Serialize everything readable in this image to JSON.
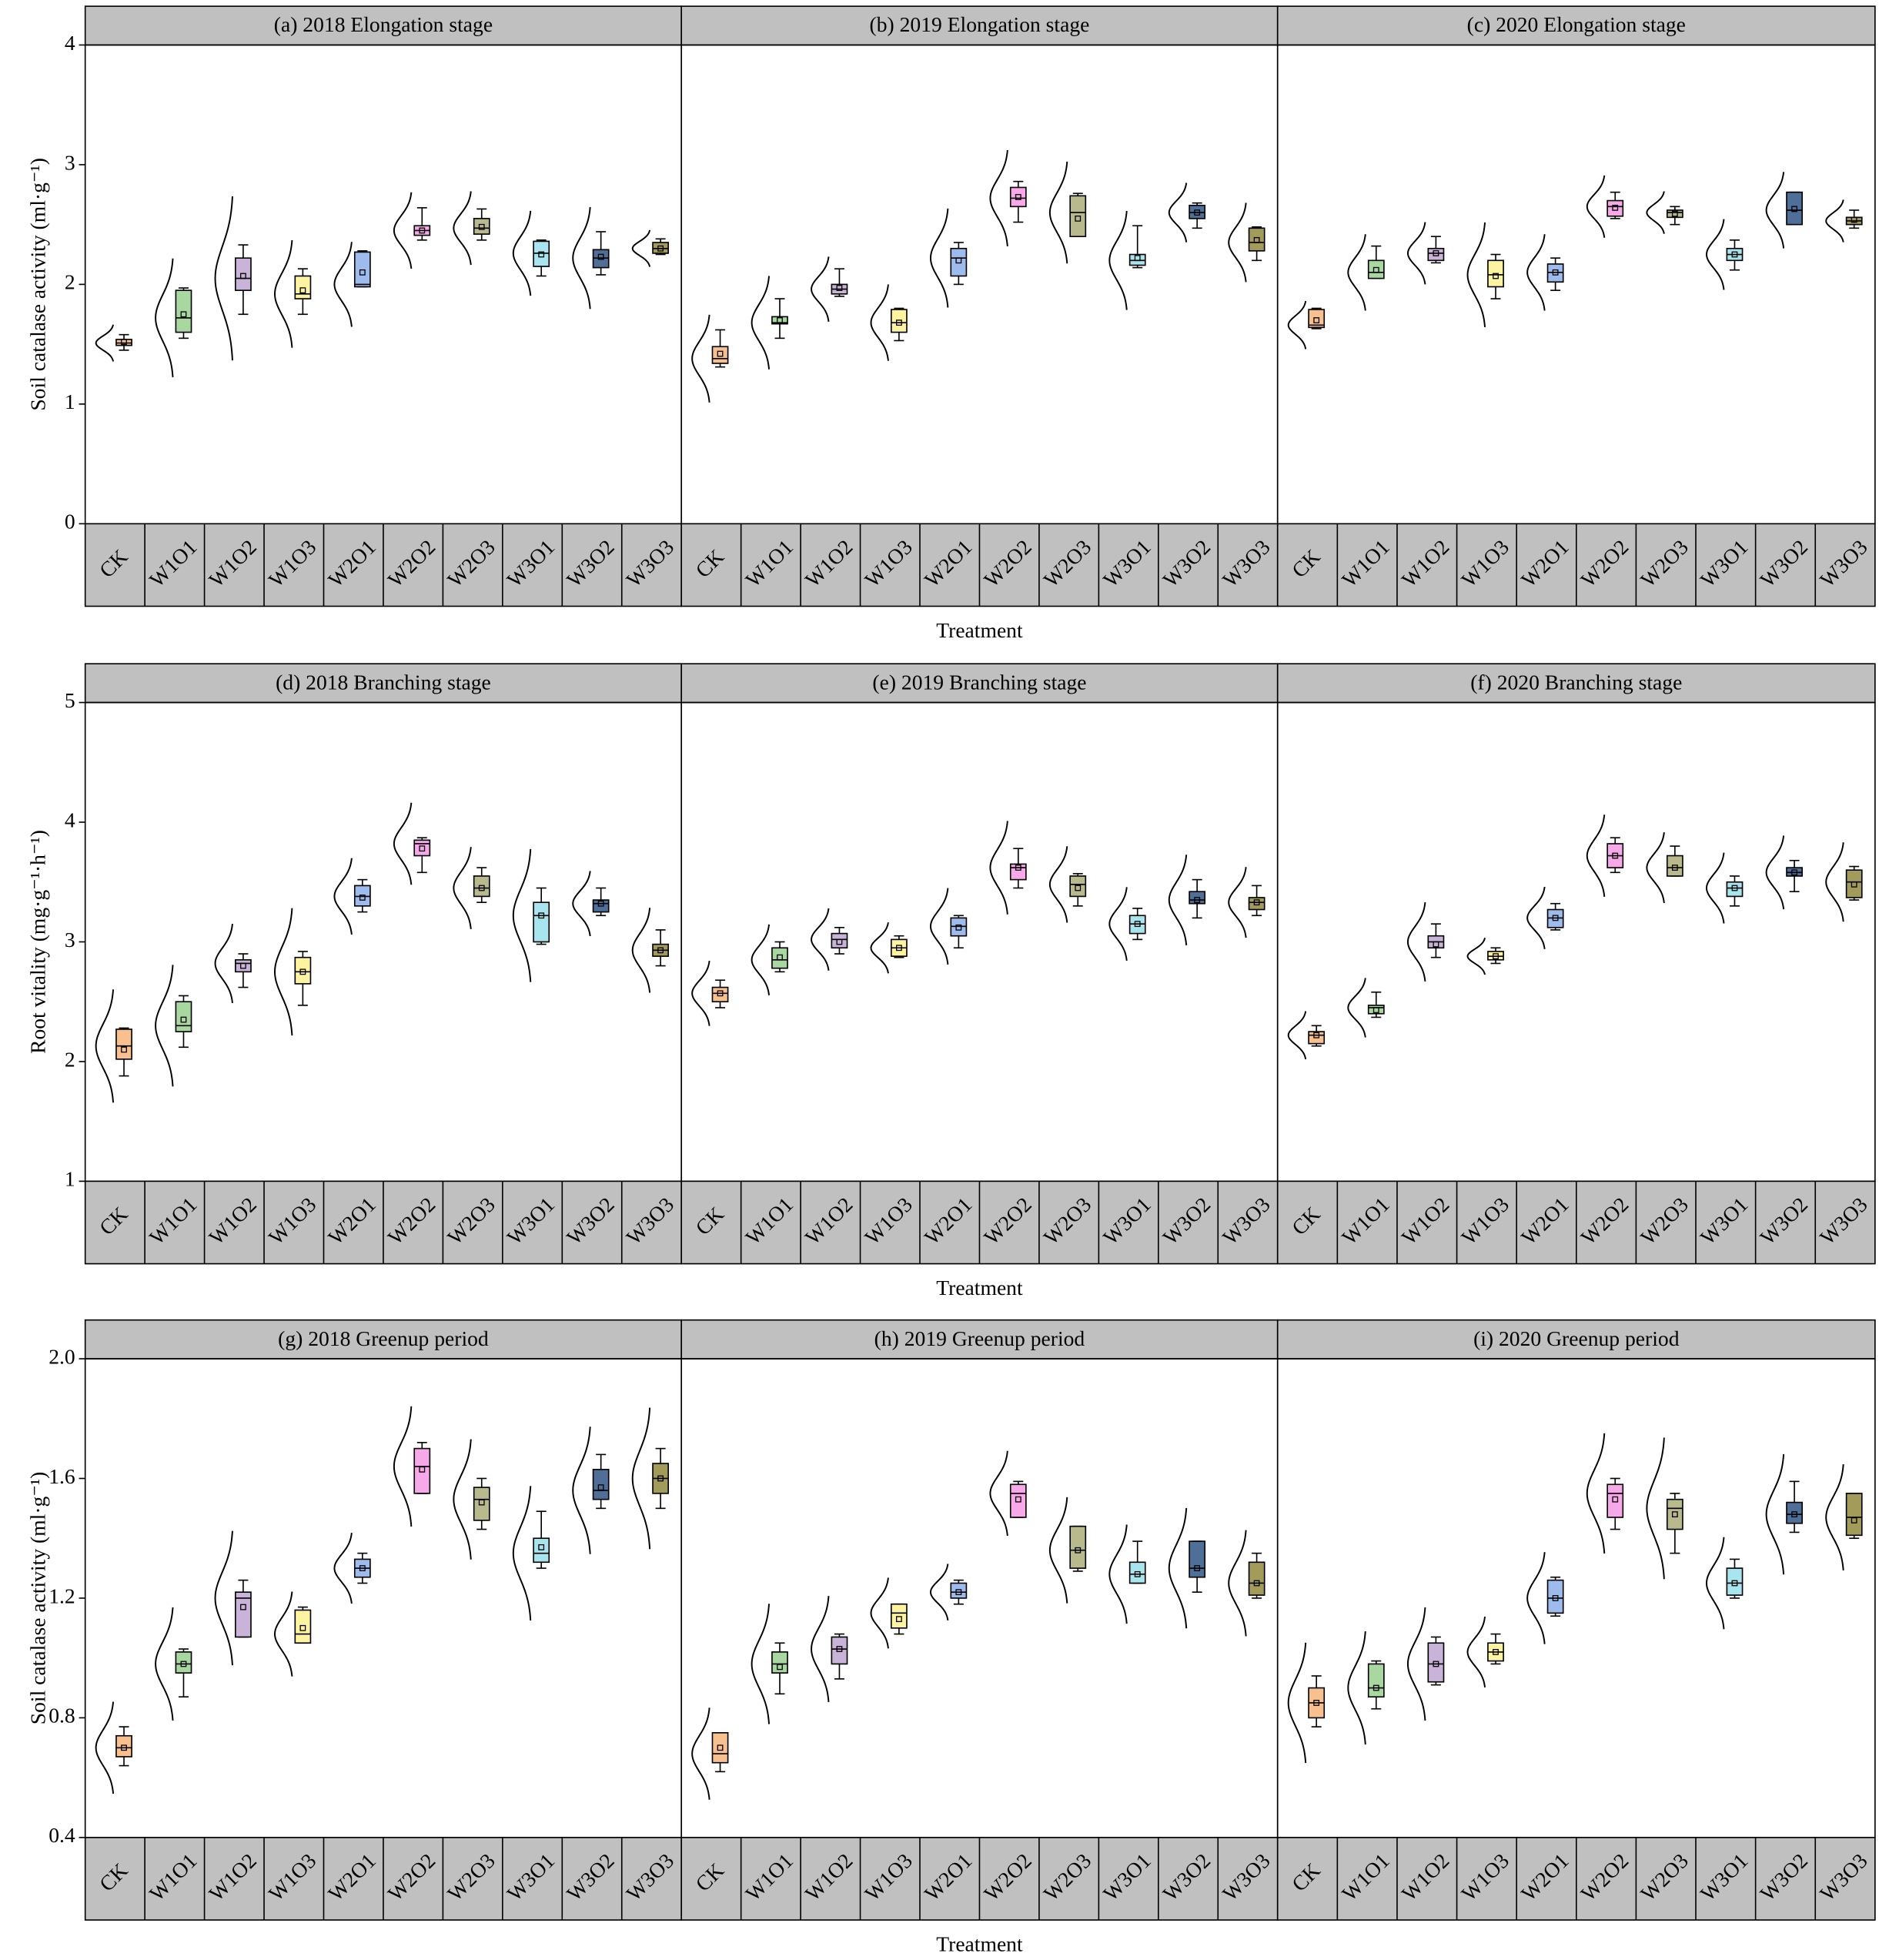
{
  "chart_data": [
    {
      "type": "box",
      "title": "(a) 2018 Elongation stage",
      "ylabel": "Soil catalase activity (ml·g⁻¹)",
      "ylim": [
        0,
        4
      ],
      "yticks": [
        0,
        1,
        2,
        3,
        4
      ],
      "categories": [
        "CK",
        "W1O1",
        "W1O2",
        "W1O3",
        "W2O1",
        "W2O2",
        "W2O3",
        "W3O1",
        "W3O2",
        "W3O3"
      ],
      "colors": [
        "#f9c08f",
        "#a8d8a0",
        "#c9b3d9",
        "#fdf3a0",
        "#9dbbec",
        "#f7a8e8",
        "#b9b98e",
        "#a8e5ef",
        "#4f6f99",
        "#a39b5a"
      ],
      "boxes": [
        [
          1.45,
          1.49,
          1.51,
          1.54,
          1.58
        ],
        [
          1.55,
          1.6,
          1.72,
          1.95,
          1.97
        ],
        [
          1.75,
          1.95,
          2.05,
          2.22,
          2.33
        ],
        [
          1.75,
          1.88,
          1.92,
          2.07,
          2.13
        ],
        [
          1.98,
          1.98,
          2.0,
          2.27,
          2.28
        ],
        [
          2.37,
          2.41,
          2.45,
          2.49,
          2.64
        ],
        [
          2.37,
          2.42,
          2.47,
          2.55,
          2.63
        ],
        [
          2.07,
          2.15,
          2.26,
          2.36,
          2.37
        ],
        [
          2.08,
          2.14,
          2.22,
          2.29,
          2.44
        ],
        [
          2.25,
          2.26,
          2.3,
          2.35,
          2.38
        ]
      ],
      "means": [
        1.52,
        1.75,
        2.07,
        1.95,
        2.1,
        2.45,
        2.48,
        2.25,
        2.23,
        2.3
      ]
    },
    {
      "type": "box",
      "title": "(b) 2019 Elongation stage",
      "xlabel": "Treatment",
      "ylim": [
        0,
        4
      ],
      "categories": [
        "CK",
        "W1O1",
        "W1O2",
        "W1O3",
        "W2O1",
        "W2O2",
        "W2O3",
        "W3O1",
        "W3O2",
        "W3O3"
      ],
      "colors": [
        "#f9c08f",
        "#a8d8a0",
        "#c9b3d9",
        "#fdf3a0",
        "#9dbbec",
        "#f7a8e8",
        "#b9b98e",
        "#a8e5ef",
        "#4f6f99",
        "#a39b5a"
      ],
      "boxes": [
        [
          1.31,
          1.34,
          1.38,
          1.48,
          1.62
        ],
        [
          1.55,
          1.67,
          1.68,
          1.73,
          1.88
        ],
        [
          1.9,
          1.92,
          1.96,
          2.0,
          2.13
        ],
        [
          1.53,
          1.6,
          1.68,
          1.79,
          1.8
        ],
        [
          2.0,
          2.07,
          2.22,
          2.3,
          2.35
        ],
        [
          2.52,
          2.65,
          2.72,
          2.81,
          2.86
        ],
        [
          2.4,
          2.4,
          2.6,
          2.74,
          2.76
        ],
        [
          2.14,
          2.16,
          2.2,
          2.25,
          2.49
        ],
        [
          2.47,
          2.55,
          2.6,
          2.66,
          2.68
        ],
        [
          2.2,
          2.28,
          2.35,
          2.47,
          2.48
        ]
      ],
      "means": [
        1.42,
        1.7,
        1.97,
        1.68,
        2.2,
        2.73,
        2.55,
        2.22,
        2.6,
        2.37
      ]
    },
    {
      "type": "box",
      "title": "(c) 2020 Elongation stage",
      "ylim": [
        0,
        4
      ],
      "categories": [
        "CK",
        "W1O1",
        "W1O2",
        "W1O3",
        "W2O1",
        "W2O2",
        "W2O3",
        "W3O1",
        "W3O2",
        "W3O3"
      ],
      "colors": [
        "#f9c08f",
        "#a8d8a0",
        "#c9b3d9",
        "#fdf3a0",
        "#9dbbec",
        "#f7a8e8",
        "#b9b98e",
        "#a8e5ef",
        "#4f6f99",
        "#a39b5a"
      ],
      "boxes": [
        [
          1.63,
          1.64,
          1.66,
          1.79,
          1.8
        ],
        [
          2.05,
          2.05,
          2.1,
          2.2,
          2.32
        ],
        [
          2.18,
          2.2,
          2.26,
          2.3,
          2.4
        ],
        [
          1.88,
          1.98,
          2.08,
          2.2,
          2.25
        ],
        [
          1.95,
          2.02,
          2.1,
          2.17,
          2.22
        ],
        [
          2.55,
          2.57,
          2.65,
          2.7,
          2.77
        ],
        [
          2.5,
          2.56,
          2.6,
          2.62,
          2.65
        ],
        [
          2.12,
          2.2,
          2.25,
          2.3,
          2.37
        ],
        [
          2.5,
          2.5,
          2.62,
          2.77,
          2.77
        ],
        [
          2.47,
          2.5,
          2.53,
          2.56,
          2.62
        ]
      ],
      "means": [
        1.7,
        2.12,
        2.26,
        2.07,
        2.1,
        2.64,
        2.59,
        2.25,
        2.63,
        2.54
      ]
    },
    {
      "type": "box",
      "title": "(d) 2018 Branching  stage",
      "ylabel": "Root vitality (mg·g⁻¹·h⁻¹)",
      "ylim": [
        1,
        5
      ],
      "yticks": [
        1,
        2,
        3,
        4,
        5
      ],
      "categories": [
        "CK",
        "W1O1",
        "W1O2",
        "W1O3",
        "W2O1",
        "W2O2",
        "W2O3",
        "W3O1",
        "W3O2",
        "W3O3"
      ],
      "colors": [
        "#f9c08f",
        "#a8d8a0",
        "#c9b3d9",
        "#fdf3a0",
        "#9dbbec",
        "#f7a8e8",
        "#b9b98e",
        "#a8e5ef",
        "#4f6f99",
        "#a39b5a"
      ],
      "boxes": [
        [
          1.88,
          2.02,
          2.13,
          2.27,
          2.28
        ],
        [
          2.12,
          2.25,
          2.3,
          2.5,
          2.55
        ],
        [
          2.62,
          2.75,
          2.82,
          2.85,
          2.9
        ],
        [
          2.47,
          2.65,
          2.75,
          2.87,
          2.92
        ],
        [
          3.25,
          3.3,
          3.38,
          3.47,
          3.52
        ],
        [
          3.58,
          3.72,
          3.82,
          3.85,
          3.87
        ],
        [
          3.33,
          3.38,
          3.45,
          3.55,
          3.62
        ],
        [
          2.98,
          3.0,
          3.22,
          3.33,
          3.45
        ],
        [
          3.22,
          3.25,
          3.32,
          3.35,
          3.45
        ],
        [
          2.8,
          2.88,
          2.93,
          2.98,
          3.1
        ]
      ],
      "means": [
        2.1,
        2.35,
        2.8,
        2.75,
        3.37,
        3.78,
        3.45,
        3.22,
        3.32,
        2.93
      ]
    },
    {
      "type": "box",
      "title": "(e) 2019 Branching  stage",
      "xlabel": "Treatment",
      "ylim": [
        1,
        5
      ],
      "categories": [
        "CK",
        "W1O1",
        "W1O2",
        "W1O3",
        "W2O1",
        "W2O2",
        "W2O3",
        "W3O1",
        "W3O2",
        "W3O3"
      ],
      "colors": [
        "#f9c08f",
        "#a8d8a0",
        "#c9b3d9",
        "#fdf3a0",
        "#9dbbec",
        "#f7a8e8",
        "#b9b98e",
        "#a8e5ef",
        "#4f6f99",
        "#a39b5a"
      ],
      "boxes": [
        [
          2.45,
          2.5,
          2.57,
          2.62,
          2.68
        ],
        [
          2.75,
          2.78,
          2.85,
          2.95,
          3.0
        ],
        [
          2.9,
          2.95,
          3.02,
          3.07,
          3.12
        ],
        [
          2.87,
          2.88,
          2.95,
          3.02,
          3.05
        ],
        [
          2.95,
          3.05,
          3.13,
          3.2,
          3.22
        ],
        [
          3.45,
          3.52,
          3.62,
          3.65,
          3.78
        ],
        [
          3.3,
          3.38,
          3.48,
          3.55,
          3.57
        ],
        [
          3.02,
          3.07,
          3.15,
          3.22,
          3.28
        ],
        [
          3.2,
          3.32,
          3.35,
          3.42,
          3.52
        ],
        [
          3.22,
          3.27,
          3.33,
          3.37,
          3.47
        ]
      ],
      "means": [
        2.57,
        2.87,
        3.0,
        2.95,
        3.12,
        3.62,
        3.45,
        3.15,
        3.35,
        3.33
      ]
    },
    {
      "type": "box",
      "title": "(f) 2020 Branching  stage",
      "ylim": [
        1,
        5
      ],
      "categories": [
        "CK",
        "W1O1",
        "W1O2",
        "W1O3",
        "W2O1",
        "W2O2",
        "W2O3",
        "W3O1",
        "W3O2",
        "W3O3"
      ],
      "colors": [
        "#f9c08f",
        "#a8d8a0",
        "#c9b3d9",
        "#fdf3a0",
        "#9dbbec",
        "#f7a8e8",
        "#b9b98e",
        "#a8e5ef",
        "#4f6f99",
        "#a39b5a"
      ],
      "boxes": [
        [
          2.13,
          2.15,
          2.22,
          2.25,
          2.3
        ],
        [
          2.37,
          2.4,
          2.45,
          2.47,
          2.58
        ],
        [
          2.87,
          2.95,
          3.0,
          3.05,
          3.15
        ],
        [
          2.82,
          2.85,
          2.88,
          2.92,
          2.95
        ],
        [
          3.1,
          3.12,
          3.2,
          3.27,
          3.32
        ],
        [
          3.58,
          3.62,
          3.72,
          3.82,
          3.87
        ],
        [
          3.55,
          3.55,
          3.62,
          3.72,
          3.8
        ],
        [
          3.3,
          3.38,
          3.45,
          3.5,
          3.55
        ],
        [
          3.42,
          3.55,
          3.58,
          3.62,
          3.68
        ],
        [
          3.35,
          3.37,
          3.5,
          3.6,
          3.63
        ]
      ],
      "means": [
        2.22,
        2.43,
        2.98,
        2.88,
        3.2,
        3.72,
        3.62,
        3.45,
        3.58,
        3.48
      ]
    },
    {
      "type": "box",
      "title": "(g) 2018 Greenup period",
      "ylabel": "Soil catalase activity (ml·g⁻¹)",
      "ylim": [
        0.4,
        2.0
      ],
      "yticks": [
        0.4,
        0.8,
        1.2,
        1.6,
        {
          "value": 2,
          "label": "2.0"
        }
      ],
      "categories": [
        "CK",
        "W1O1",
        "W1O2",
        "W1O3",
        "W2O1",
        "W2O2",
        "W2O3",
        "W3O1",
        "W3O2",
        "W3O3"
      ],
      "colors": [
        "#f9c08f",
        "#a8d8a0",
        "#c9b3d9",
        "#fdf3a0",
        "#9dbbec",
        "#f7a8e8",
        "#b9b98e",
        "#a8e5ef",
        "#4f6f99",
        "#a39b5a"
      ],
      "boxes": [
        [
          0.64,
          0.67,
          0.7,
          0.74,
          0.77
        ],
        [
          0.87,
          0.95,
          0.98,
          1.02,
          1.03
        ],
        [
          1.07,
          1.07,
          1.2,
          1.22,
          1.26
        ],
        [
          1.05,
          1.05,
          1.08,
          1.16,
          1.17
        ],
        [
          1.25,
          1.27,
          1.3,
          1.33,
          1.35
        ],
        [
          1.55,
          1.55,
          1.64,
          1.7,
          1.72
        ],
        [
          1.43,
          1.46,
          1.53,
          1.57,
          1.6
        ],
        [
          1.3,
          1.32,
          1.35,
          1.4,
          1.49
        ],
        [
          1.5,
          1.53,
          1.56,
          1.63,
          1.68
        ],
        [
          1.5,
          1.55,
          1.6,
          1.65,
          1.7
        ]
      ],
      "means": [
        0.7,
        0.98,
        1.17,
        1.1,
        1.3,
        1.63,
        1.52,
        1.37,
        1.57,
        1.6
      ]
    },
    {
      "type": "box",
      "title": "(h) 2019 Greenup period",
      "xlabel": "Treatment",
      "ylim": [
        0.4,
        2.0
      ],
      "categories": [
        "CK",
        "W1O1",
        "W1O2",
        "W1O3",
        "W2O1",
        "W2O2",
        "W2O3",
        "W3O1",
        "W3O2",
        "W3O3"
      ],
      "colors": [
        "#f9c08f",
        "#a8d8a0",
        "#c9b3d9",
        "#fdf3a0",
        "#9dbbec",
        "#f7a8e8",
        "#b9b98e",
        "#a8e5ef",
        "#4f6f99",
        "#a39b5a"
      ],
      "boxes": [
        [
          0.62,
          0.65,
          0.68,
          0.75,
          0.75
        ],
        [
          0.88,
          0.95,
          0.98,
          1.02,
          1.05
        ],
        [
          0.93,
          0.98,
          1.03,
          1.07,
          1.08
        ],
        [
          1.08,
          1.1,
          1.15,
          1.18,
          1.18
        ],
        [
          1.18,
          1.2,
          1.22,
          1.25,
          1.26
        ],
        [
          1.47,
          1.47,
          1.55,
          1.58,
          1.59
        ],
        [
          1.29,
          1.3,
          1.36,
          1.44,
          1.44
        ],
        [
          1.25,
          1.25,
          1.28,
          1.32,
          1.39
        ],
        [
          1.22,
          1.27,
          1.3,
          1.39,
          1.39
        ],
        [
          1.2,
          1.21,
          1.25,
          1.32,
          1.35
        ]
      ],
      "means": [
        0.7,
        0.97,
        1.03,
        1.13,
        1.22,
        1.53,
        1.36,
        1.28,
        1.3,
        1.25
      ]
    },
    {
      "type": "box",
      "title": "(i) 2020 Greenup period",
      "ylim": [
        0.4,
        2.0
      ],
      "categories": [
        "CK",
        "W1O1",
        "W1O2",
        "W1O3",
        "W2O1",
        "W2O2",
        "W2O3",
        "W3O1",
        "W3O2",
        "W3O3"
      ],
      "colors": [
        "#f9c08f",
        "#a8d8a0",
        "#c9b3d9",
        "#fdf3a0",
        "#9dbbec",
        "#f7a8e8",
        "#b9b98e",
        "#a8e5ef",
        "#4f6f99",
        "#a39b5a"
      ],
      "boxes": [
        [
          0.77,
          0.8,
          0.85,
          0.9,
          0.94
        ],
        [
          0.83,
          0.87,
          0.9,
          0.98,
          0.99
        ],
        [
          0.91,
          0.92,
          0.98,
          1.05,
          1.07
        ],
        [
          0.98,
          0.99,
          1.02,
          1.05,
          1.08
        ],
        [
          1.14,
          1.15,
          1.2,
          1.26,
          1.27
        ],
        [
          1.43,
          1.47,
          1.55,
          1.58,
          1.6
        ],
        [
          1.35,
          1.43,
          1.5,
          1.53,
          1.55
        ],
        [
          1.2,
          1.21,
          1.25,
          1.3,
          1.33
        ],
        [
          1.42,
          1.45,
          1.48,
          1.52,
          1.59
        ],
        [
          1.4,
          1.41,
          1.47,
          1.55,
          1.55
        ]
      ],
      "means": [
        0.85,
        0.9,
        0.98,
        1.02,
        1.2,
        1.53,
        1.48,
        1.25,
        1.48,
        1.46
      ]
    }
  ]
}
